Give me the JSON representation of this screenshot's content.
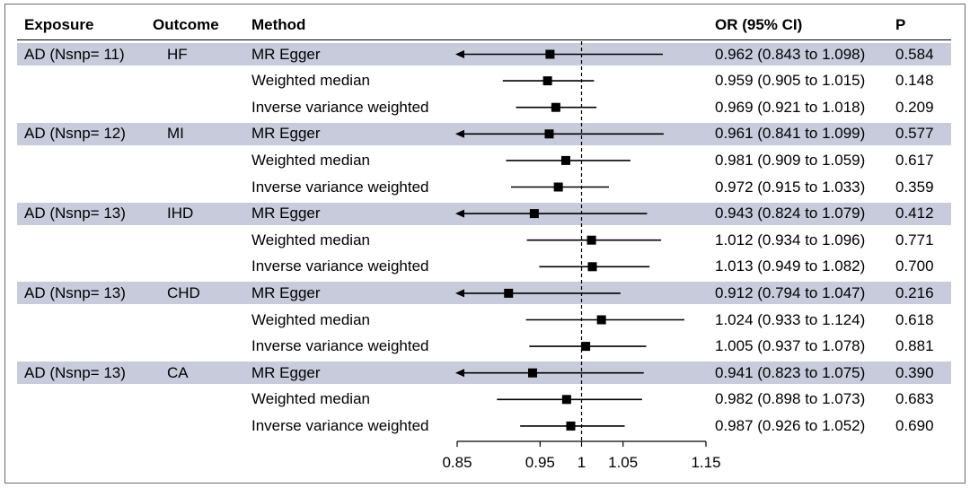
{
  "headers": {
    "exposure": "Exposure",
    "outcome": "Outcome",
    "method": "Method",
    "or_ci": "OR (95% CI)",
    "p": "P"
  },
  "chart_data": {
    "type": "forest",
    "x_ticks": [
      0.85,
      0.95,
      1,
      1.05,
      1.15
    ],
    "x_tick_labels": [
      "0.85",
      "0.95",
      "1",
      "1.05",
      "1.15"
    ],
    "xlim": [
      0.85,
      1.15
    ],
    "reference_line": 1,
    "reference_style": "dashed",
    "marker_color": "#000000",
    "band_color": "#c7cbdc",
    "rows": [
      {
        "exposure": "AD (Nsnp= 11)",
        "outcome": "HF",
        "method": "MR Egger",
        "or": 0.962,
        "lower": 0.843,
        "upper": 1.098,
        "or_ci": "0.962 (0.843 to 1.098)",
        "p": "0.584"
      },
      {
        "exposure": "",
        "outcome": "",
        "method": "Weighted median",
        "or": 0.959,
        "lower": 0.905,
        "upper": 1.015,
        "or_ci": "0.959 (0.905 to 1.015)",
        "p": "0.148"
      },
      {
        "exposure": "",
        "outcome": "",
        "method": "Inverse variance weighted",
        "or": 0.969,
        "lower": 0.921,
        "upper": 1.018,
        "or_ci": "0.969 (0.921 to 1.018)",
        "p": "0.209"
      },
      {
        "exposure": "AD (Nsnp= 12)",
        "outcome": "MI",
        "method": "MR Egger",
        "or": 0.961,
        "lower": 0.841,
        "upper": 1.099,
        "or_ci": "0.961 (0.841 to 1.099)",
        "p": "0.577"
      },
      {
        "exposure": "",
        "outcome": "",
        "method": "Weighted median",
        "or": 0.981,
        "lower": 0.909,
        "upper": 1.059,
        "or_ci": "0.981 (0.909 to 1.059)",
        "p": "0.617"
      },
      {
        "exposure": "",
        "outcome": "",
        "method": "Inverse variance weighted",
        "or": 0.972,
        "lower": 0.915,
        "upper": 1.033,
        "or_ci": "0.972 (0.915 to 1.033)",
        "p": "0.359"
      },
      {
        "exposure": "AD (Nsnp= 13)",
        "outcome": "IHD",
        "method": "MR Egger",
        "or": 0.943,
        "lower": 0.824,
        "upper": 1.079,
        "or_ci": "0.943 (0.824 to 1.079)",
        "p": "0.412"
      },
      {
        "exposure": "",
        "outcome": "",
        "method": "Weighted median",
        "or": 1.012,
        "lower": 0.934,
        "upper": 1.096,
        "or_ci": "1.012 (0.934 to 1.096)",
        "p": "0.771"
      },
      {
        "exposure": "",
        "outcome": "",
        "method": "Inverse variance weighted",
        "or": 1.013,
        "lower": 0.949,
        "upper": 1.082,
        "or_ci": "1.013 (0.949 to 1.082)",
        "p": "0.700"
      },
      {
        "exposure": "AD (Nsnp= 13)",
        "outcome": "CHD",
        "method": "MR Egger",
        "or": 0.912,
        "lower": 0.794,
        "upper": 1.047,
        "or_ci": "0.912 (0.794 to 1.047)",
        "p": "0.216"
      },
      {
        "exposure": "",
        "outcome": "",
        "method": "Weighted median",
        "or": 1.024,
        "lower": 0.933,
        "upper": 1.124,
        "or_ci": "1.024 (0.933 to 1.124)",
        "p": "0.618"
      },
      {
        "exposure": "",
        "outcome": "",
        "method": "Inverse variance weighted",
        "or": 1.005,
        "lower": 0.937,
        "upper": 1.078,
        "or_ci": "1.005 (0.937 to 1.078)",
        "p": "0.881"
      },
      {
        "exposure": "AD (Nsnp= 13)",
        "outcome": "CA",
        "method": "MR Egger",
        "or": 0.941,
        "lower": 0.823,
        "upper": 1.075,
        "or_ci": "0.941 (0.823 to 1.075)",
        "p": "0.390"
      },
      {
        "exposure": "",
        "outcome": "",
        "method": "Weighted median",
        "or": 0.982,
        "lower": 0.898,
        "upper": 1.073,
        "or_ci": "0.982 (0.898 to 1.073)",
        "p": "0.683"
      },
      {
        "exposure": "",
        "outcome": "",
        "method": "Inverse variance weighted",
        "or": 0.987,
        "lower": 0.926,
        "upper": 1.052,
        "or_ci": "0.987 (0.926 to 1.052)",
        "p": "0.690"
      }
    ]
  }
}
